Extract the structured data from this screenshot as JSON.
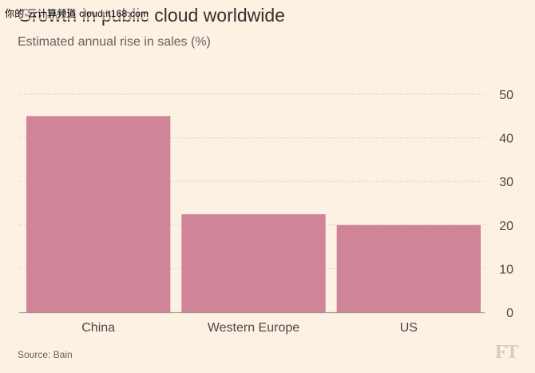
{
  "title": "Growth in public cloud worldwide",
  "watermark": "你的·云计算频道 cloud.it168.com",
  "subtitle": "Estimated annual rise in sales (%)",
  "source": "Source: Bain",
  "logo": "FT",
  "colors": {
    "bar": "#d08497",
    "background": "#fdf1e4",
    "grid": "#c9bdb2",
    "axis": "#a0948a",
    "text": "#33302e"
  },
  "chart_data": {
    "type": "bar",
    "categories": [
      "China",
      "Western Europe",
      "US"
    ],
    "values": [
      45,
      22.5,
      20
    ],
    "title": "Growth in public cloud worldwide",
    "ylabel": "Estimated annual rise in sales (%)",
    "ylim": [
      0,
      50
    ],
    "yticks": [
      0,
      10,
      20,
      30,
      40,
      50
    ],
    "y_axis_side": "right",
    "grid": true
  }
}
